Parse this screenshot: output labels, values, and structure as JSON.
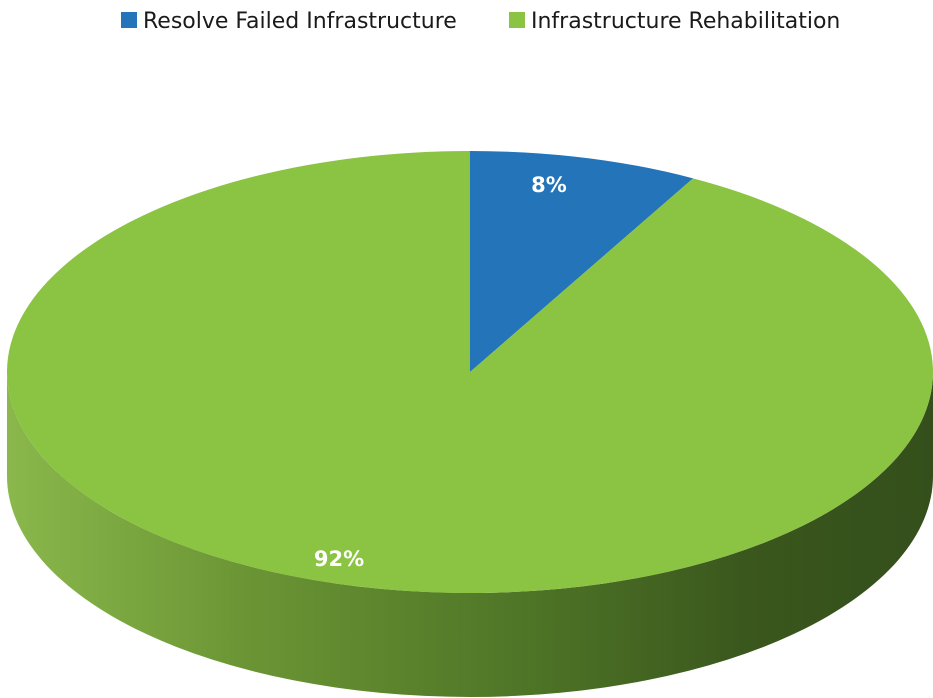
{
  "chart_data": {
    "type": "pie",
    "style": "3d",
    "title": "",
    "legend_position": "top",
    "categories": [
      "Resolve Failed Infrastructure",
      "Infrastructure Rehabilitation"
    ],
    "values": [
      8,
      92
    ],
    "unit": "%",
    "data_labels": [
      "8%",
      "92%"
    ],
    "colors": [
      "#2374b8",
      "#8bc342"
    ],
    "side_colors": [
      "#1a5a8e",
      "#5c8a2c"
    ]
  }
}
